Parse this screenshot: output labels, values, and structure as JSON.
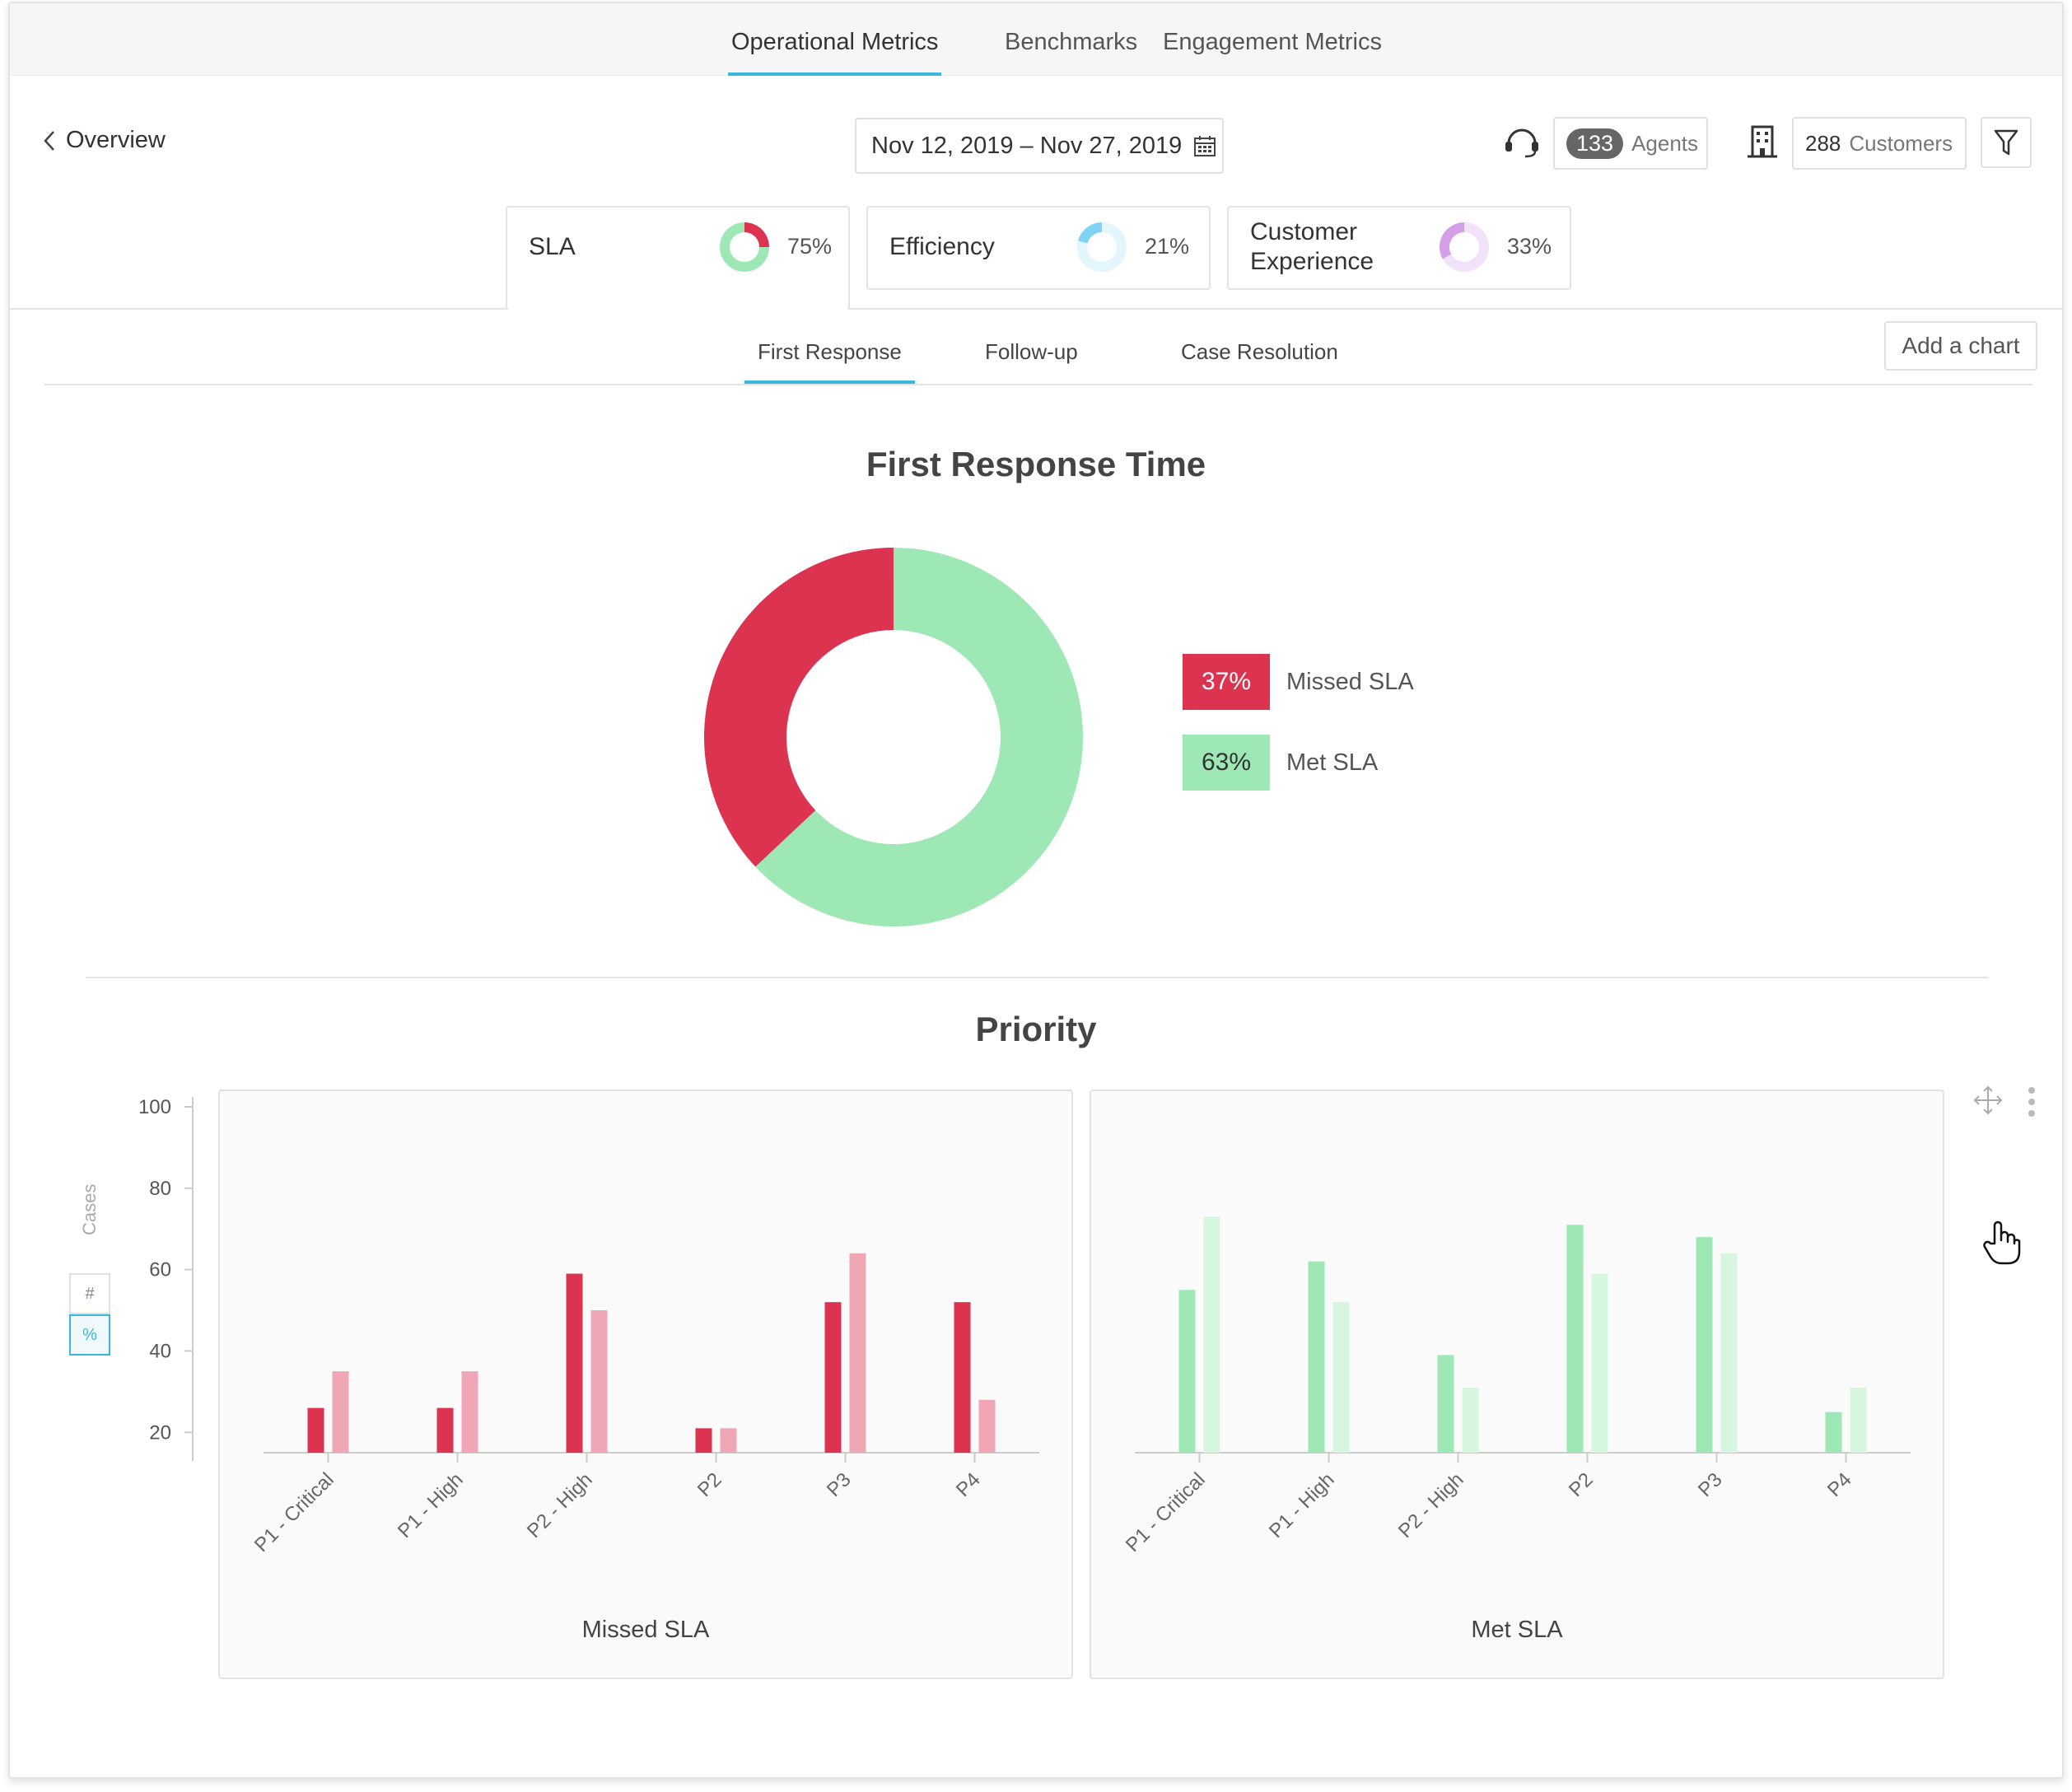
{
  "nav": {
    "tabs": [
      {
        "label": "Operational Metrics",
        "active": true
      },
      {
        "label": "Benchmarks",
        "active": false
      },
      {
        "label": "Engagement Metrics",
        "active": false
      }
    ]
  },
  "header": {
    "back_label": "Overview",
    "date_range": "Nov 12, 2019 – Nov 27, 2019",
    "agents_count": "133",
    "agents_label": "Agents",
    "customers_count": "288",
    "customers_label": "Customers"
  },
  "kpis": [
    {
      "label": "SLA",
      "pct": "75%",
      "value": 0.75,
      "colors": [
        "#dc3350",
        "#9de8b4"
      ],
      "active": true
    },
    {
      "label": "Efficiency",
      "pct": "21%",
      "value": 0.21,
      "colors": [
        "#e3f6fd",
        "#7fd3f3"
      ],
      "active": false
    },
    {
      "label": "Customer\nExperience",
      "pct": "33%",
      "value": 0.33,
      "colors": [
        "#f1e1f9",
        "#d59ee8"
      ],
      "active": false
    }
  ],
  "subtabs": [
    {
      "label": "First Response",
      "active": true
    },
    {
      "label": "Follow-up",
      "active": false
    },
    {
      "label": "Case Resolution",
      "active": false
    }
  ],
  "add_chart_label": "Add a chart",
  "colors": {
    "accent": "#3bb6dd",
    "missed": "#dc3350",
    "missed_light": "#efa7b5",
    "met": "#9de8b4",
    "met_light": "#d6f6e0"
  },
  "y_toggle": {
    "axis_label": "Cases",
    "count_symbol": "#",
    "percent_symbol": "%"
  },
  "chart_data": [
    {
      "type": "pie",
      "title": "First Response Time",
      "donut": true,
      "labels": [
        "Missed SLA",
        "Met SLA"
      ],
      "values": [
        37,
        63
      ],
      "value_labels": [
        "37%",
        "63%"
      ],
      "colors": [
        "#dc3350",
        "#9de8b4"
      ]
    },
    {
      "type": "bar",
      "title": "Priority",
      "ylabel": "Cases",
      "ylim": [
        15,
        100
      ],
      "yticks": [
        20,
        40,
        60,
        80,
        100
      ],
      "panels": [
        {
          "xlabel": "Missed SLA",
          "categories": [
            "P1 - Critical",
            "P1 - High",
            "P2 - High",
            "P2",
            "P3",
            "P4"
          ],
          "series": [
            {
              "values": [
                26,
                26,
                59,
                21,
                52,
                52
              ],
              "color": "#dc3350"
            },
            {
              "values": [
                35,
                35,
                50,
                21,
                64,
                28
              ],
              "color": "#efa7b5"
            }
          ]
        },
        {
          "xlabel": "Met SLA",
          "categories": [
            "P1 - Critical",
            "P1 - High",
            "P2 - High",
            "P2",
            "P3",
            "P4"
          ],
          "series": [
            {
              "values": [
                55,
                62,
                39,
                71,
                68,
                25
              ],
              "color": "#9de8b4"
            },
            {
              "values": [
                73,
                52,
                31,
                59,
                64,
                31
              ],
              "color": "#d6f6e0"
            }
          ]
        }
      ]
    }
  ]
}
